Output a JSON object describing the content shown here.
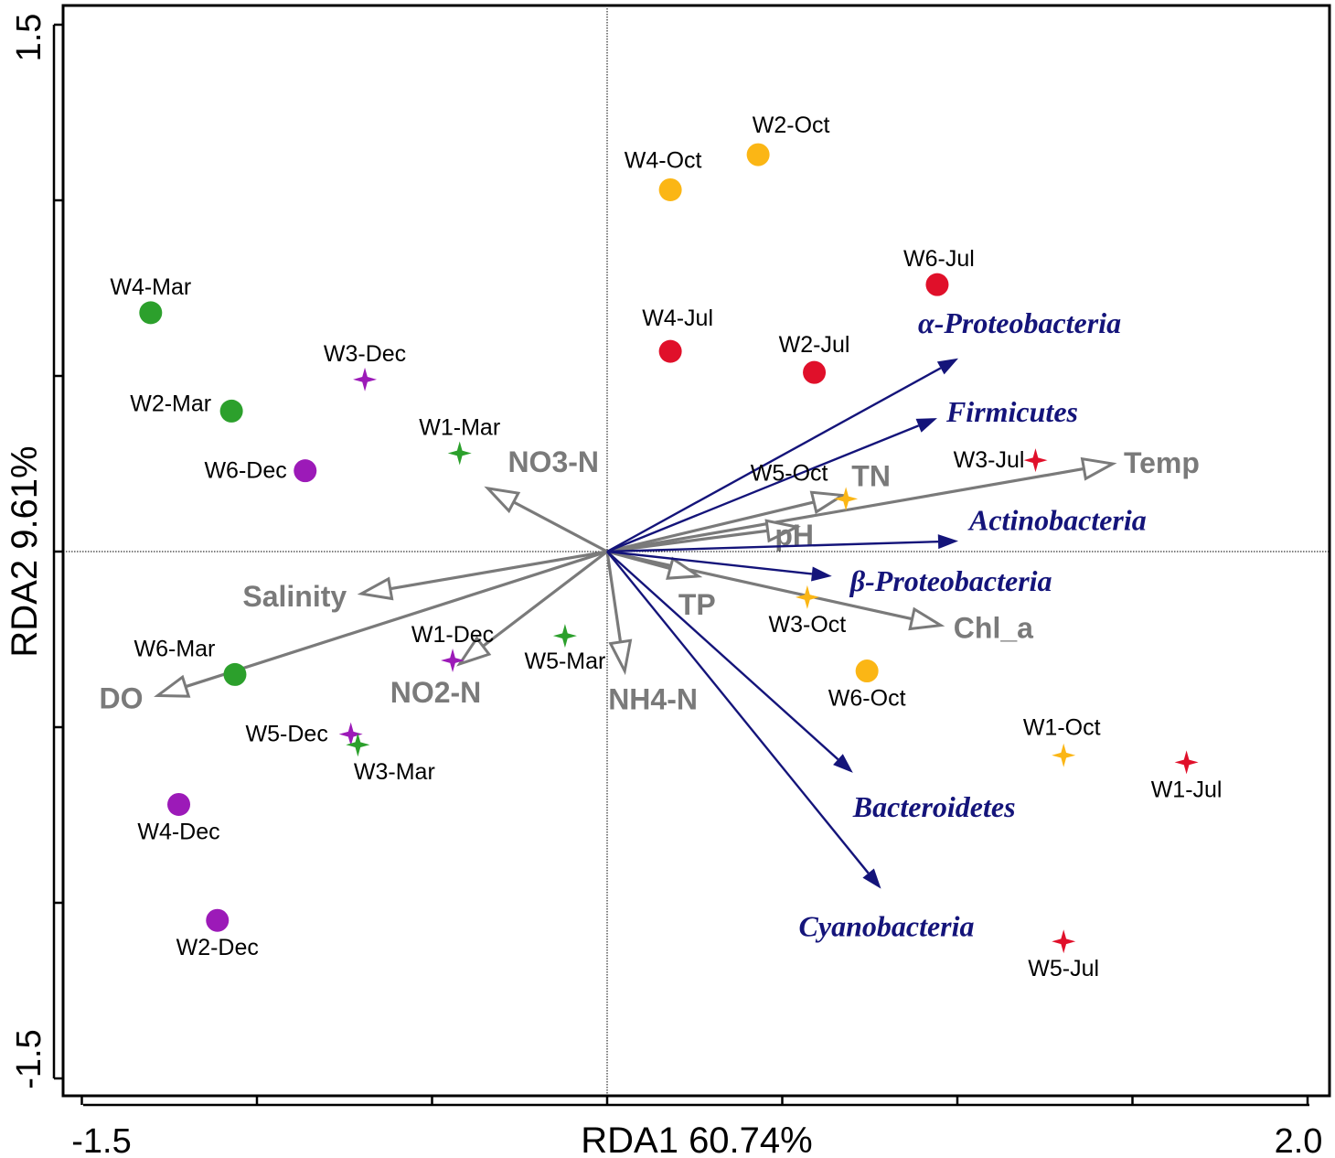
{
  "chart_data": {
    "type": "scatter",
    "subtype": "RDA biplot",
    "xlabel": "RDA1 60.74%",
    "ylabel": "RDA2 9.61%",
    "xlim": [
      -1.5,
      2.0
    ],
    "ylim": [
      -1.5,
      1.5
    ],
    "x_tick_labels": [
      "-1.5",
      "2.0"
    ],
    "y_tick_labels": [
      "-1.5",
      "1.5"
    ],
    "x_minor_ticks": [
      -1.5,
      -1.0,
      -0.5,
      0.0,
      0.5,
      1.0,
      1.5,
      2.0
    ],
    "y_minor_ticks": [
      -1.5,
      -1.0,
      -0.5,
      0.0,
      0.5,
      1.0,
      1.5
    ],
    "colors": {
      "Jul": "#e0102a",
      "Oct": "#fbb615",
      "Dec": "#9c1ab8",
      "Mar": "#2ca02c",
      "env_arrow": "#7a7a7a",
      "taxa_arrow": "#14147a"
    },
    "samples": [
      {
        "label": "W1-Jul",
        "x": 1.65,
        "y": -0.6,
        "month": "Jul",
        "marker": "star"
      },
      {
        "label": "W2-Jul",
        "x": 0.59,
        "y": 0.51,
        "month": "Jul",
        "marker": "circle"
      },
      {
        "label": "W3-Jul",
        "x": 1.22,
        "y": 0.26,
        "month": "Jul",
        "marker": "star"
      },
      {
        "label": "W4-Jul",
        "x": 0.18,
        "y": 0.57,
        "month": "Jul",
        "marker": "circle"
      },
      {
        "label": "W5-Jul",
        "x": 1.3,
        "y": -1.11,
        "month": "Jul",
        "marker": "star"
      },
      {
        "label": "W6-Jul",
        "x": 0.94,
        "y": 0.76,
        "month": "Jul",
        "marker": "circle"
      },
      {
        "label": "W1-Oct",
        "x": 1.3,
        "y": -0.58,
        "month": "Oct",
        "marker": "star"
      },
      {
        "label": "W2-Oct",
        "x": 0.43,
        "y": 1.13,
        "month": "Oct",
        "marker": "circle"
      },
      {
        "label": "W3-Oct",
        "x": 0.57,
        "y": -0.13,
        "month": "Oct",
        "marker": "star"
      },
      {
        "label": "W4-Oct",
        "x": 0.18,
        "y": 1.03,
        "month": "Oct",
        "marker": "circle"
      },
      {
        "label": "W5-Oct",
        "x": 0.68,
        "y": 0.15,
        "month": "Oct",
        "marker": "star"
      },
      {
        "label": "W6-Oct",
        "x": 0.74,
        "y": -0.34,
        "month": "Oct",
        "marker": "circle"
      },
      {
        "label": "W1-Dec",
        "x": -0.44,
        "y": -0.31,
        "month": "Dec",
        "marker": "star"
      },
      {
        "label": "W2-Dec",
        "x": -1.11,
        "y": -1.05,
        "month": "Dec",
        "marker": "circle"
      },
      {
        "label": "W3-Dec",
        "x": -0.69,
        "y": 0.49,
        "month": "Dec",
        "marker": "star"
      },
      {
        "label": "W4-Dec",
        "x": -1.22,
        "y": -0.72,
        "month": "Dec",
        "marker": "circle"
      },
      {
        "label": "W5-Dec",
        "x": -0.73,
        "y": -0.52,
        "month": "Dec",
        "marker": "star"
      },
      {
        "label": "W6-Dec",
        "x": -0.86,
        "y": 0.23,
        "month": "Dec",
        "marker": "circle"
      },
      {
        "label": "W1-Mar",
        "x": -0.42,
        "y": 0.28,
        "month": "Mar",
        "marker": "star"
      },
      {
        "label": "W2-Mar",
        "x": -1.07,
        "y": 0.4,
        "month": "Mar",
        "marker": "circle"
      },
      {
        "label": "W3-Mar",
        "x": -0.71,
        "y": -0.55,
        "month": "Mar",
        "marker": "star"
      },
      {
        "label": "W4-Mar",
        "x": -1.3,
        "y": 0.68,
        "month": "Mar",
        "marker": "circle"
      },
      {
        "label": "W5-Mar",
        "x": -0.12,
        "y": -0.24,
        "month": "Mar",
        "marker": "star"
      },
      {
        "label": "W6-Mar",
        "x": -1.06,
        "y": -0.35,
        "month": "Mar",
        "marker": "circle"
      }
    ],
    "env_vectors": [
      {
        "label": "Temp",
        "x": 1.44,
        "y": 0.25
      },
      {
        "label": "TN",
        "x": 0.67,
        "y": 0.16
      },
      {
        "label": "pH",
        "x": 0.54,
        "y": 0.07
      },
      {
        "label": "Chl_a",
        "x": 0.95,
        "y": -0.21
      },
      {
        "label": "TP",
        "x": 0.26,
        "y": -0.07
      },
      {
        "label": "NH4-N",
        "x": 0.05,
        "y": -0.34
      },
      {
        "label": "NO2-N",
        "x": -0.42,
        "y": -0.32
      },
      {
        "label": "Salinity",
        "x": -0.7,
        "y": -0.12
      },
      {
        "label": "DO",
        "x": -1.28,
        "y": -0.41
      },
      {
        "label": "NO3-N",
        "x": -0.34,
        "y": 0.18
      }
    ],
    "taxa_vectors": [
      {
        "label": "α-Proteobacteria",
        "x": 1.0,
        "y": 0.55
      },
      {
        "label": "Firmicutes",
        "x": 0.94,
        "y": 0.38
      },
      {
        "label": "Actinobacteria",
        "x": 1.0,
        "y": 0.03
      },
      {
        "label": "β-Proteobacteria",
        "x": 0.64,
        "y": -0.07
      },
      {
        "label": "Bacteroidetes",
        "x": 0.7,
        "y": -0.63
      },
      {
        "label": "Cyanobacteria",
        "x": 0.78,
        "y": -0.96
      }
    ]
  }
}
